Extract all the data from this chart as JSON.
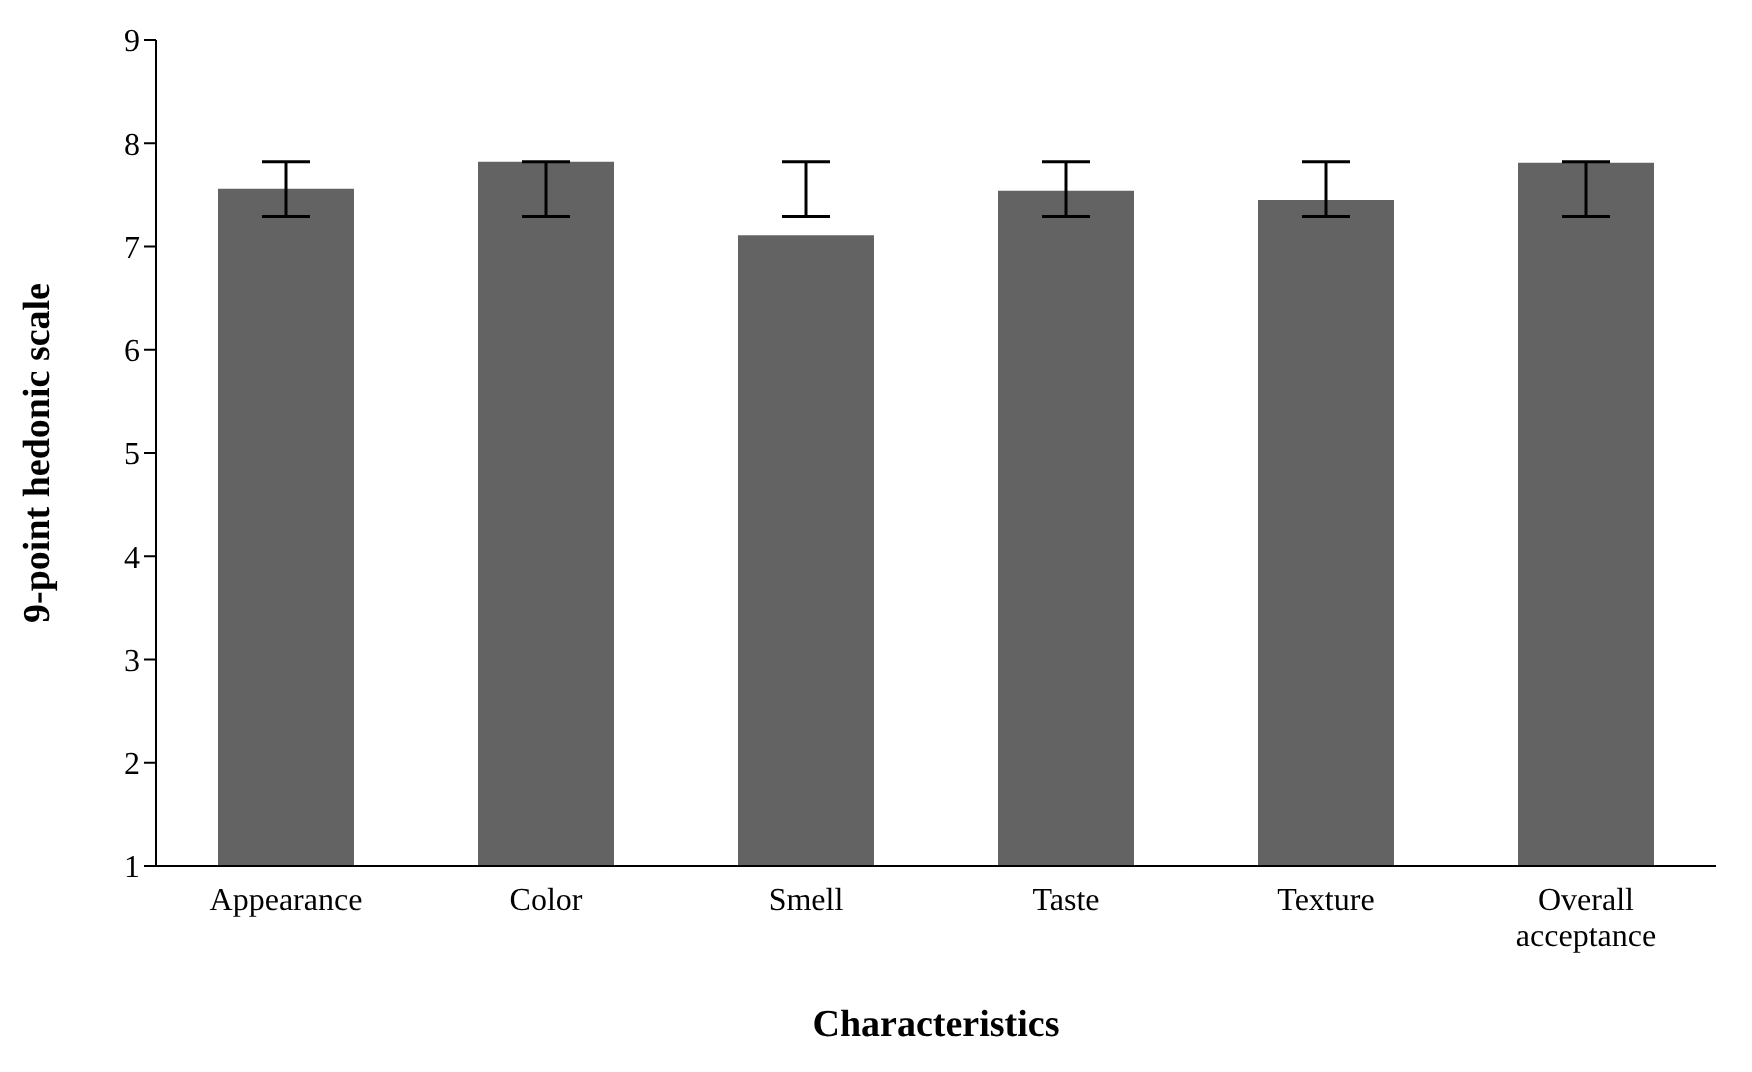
{
  "chart_data": {
    "type": "bar",
    "xlabel": "Characteristics",
    "ylabel": "9-point hedonic scale",
    "categories": [
      "Appearance",
      "Color",
      "Smell",
      "Taste",
      "Texture",
      "Overall acceptance"
    ],
    "values": [
      7.56,
      7.82,
      7.11,
      7.54,
      7.45,
      7.81
    ],
    "errors": [
      [
        7.29,
        7.82
      ],
      [
        7.29,
        7.82
      ],
      [
        7.29,
        7.82
      ],
      [
        7.29,
        7.82
      ],
      [
        7.29,
        7.82
      ],
      [
        7.29,
        7.82
      ]
    ],
    "color": "#636363",
    "ylim": [
      1,
      9
    ],
    "yticks": [
      1,
      2,
      3,
      4,
      5,
      6,
      7,
      8,
      9
    ],
    "grid": false,
    "legend": false
  }
}
